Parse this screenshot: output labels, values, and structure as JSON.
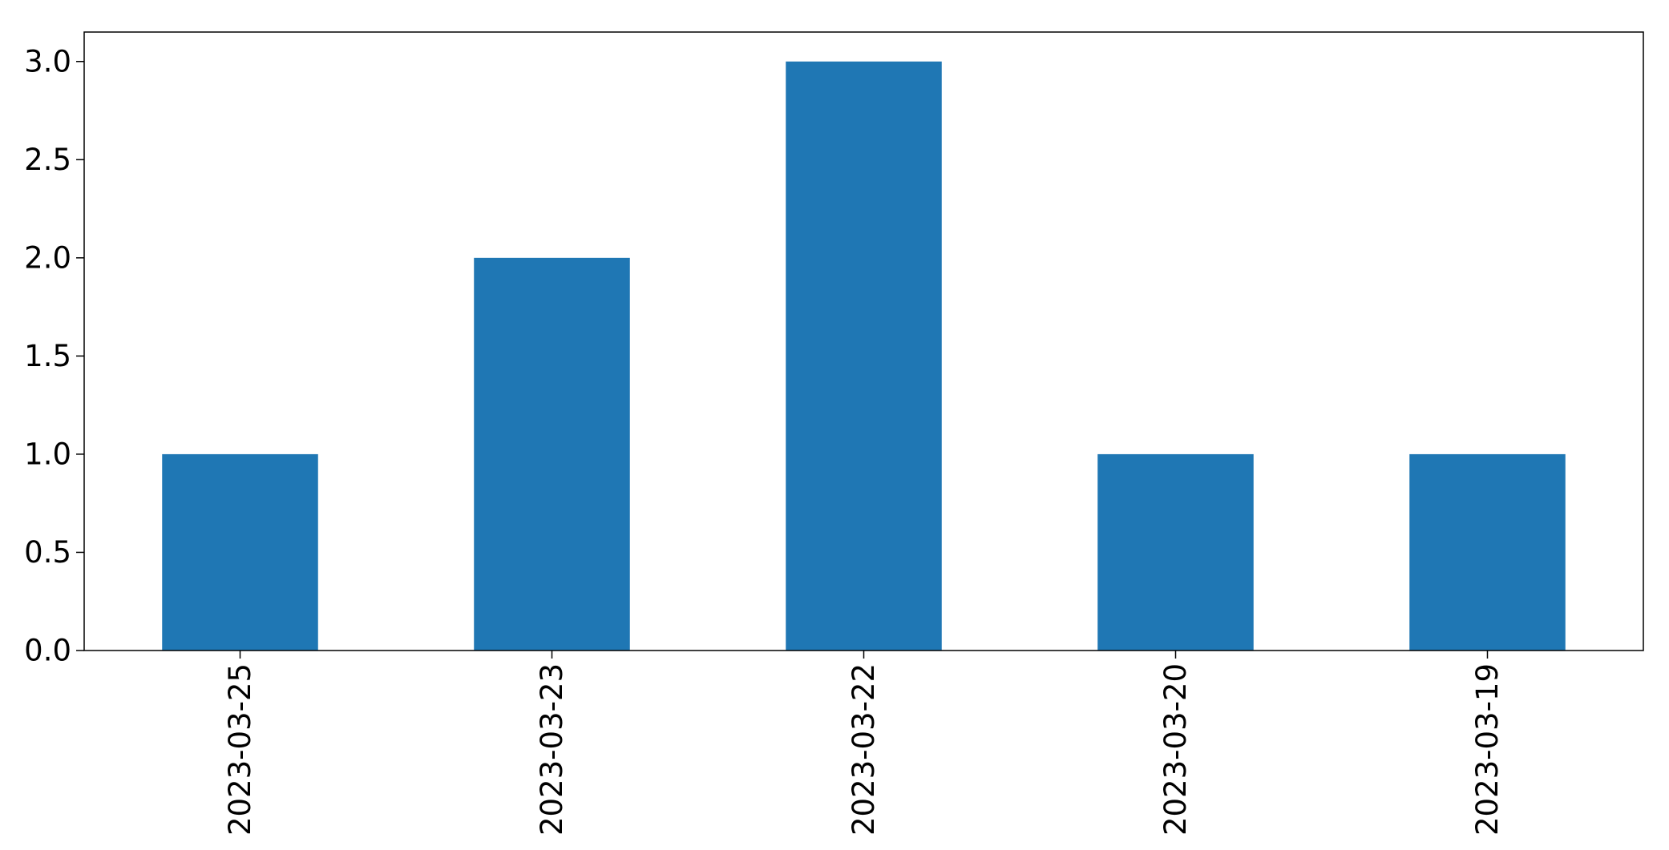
{
  "chart_data": {
    "type": "bar",
    "title": "",
    "xlabel": "",
    "ylabel": "",
    "categories": [
      "2023-03-25",
      "2023-03-23",
      "2023-03-22",
      "2023-03-20",
      "2023-03-19"
    ],
    "values": [
      1,
      2,
      3,
      1,
      1
    ],
    "ylim": [
      0,
      3.15
    ],
    "yticks": [
      0.0,
      0.5,
      1.0,
      1.5,
      2.0,
      2.5,
      3.0
    ],
    "ytick_labels": [
      "0.0",
      "0.5",
      "1.0",
      "1.5",
      "2.0",
      "2.5",
      "3.0"
    ],
    "x_tick_rotation": "vertical",
    "grid": false,
    "legend": "none",
    "bar_color": "#1f77b4"
  }
}
